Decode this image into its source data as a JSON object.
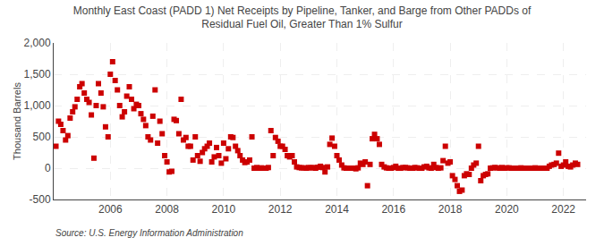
{
  "chart_data": {
    "type": "scatter",
    "title": "Monthly East Coast (PADD 1) Net Receipts by Pipeline, Tanker, and Barge from Other PADDs of\nResidual Fuel Oil, Greater Than 1% Sulfur",
    "ylabel": "Thousand Barrels",
    "annotations": [
      "Source: U.S. Energy Information Administration"
    ],
    "color": "#cc0000",
    "marker": "square",
    "grid": true,
    "xlim": [
      2004.0,
      2022.8
    ],
    "xticks": [
      2006,
      2008,
      2010,
      2012,
      2014,
      2016,
      2018,
      2020,
      2022
    ],
    "ylim": [
      -500,
      2000
    ],
    "yticks": [
      -500,
      0,
      500,
      {
        "value": 1000,
        "label": "1,000"
      },
      {
        "value": 1500,
        "label": "1,500"
      },
      {
        "value": 2000,
        "label": "2,000"
      }
    ],
    "x": [
      2004.08,
      2004.17,
      2004.25,
      2004.33,
      2004.42,
      2004.5,
      2004.58,
      2004.67,
      2004.75,
      2004.83,
      2004.92,
      2005.0,
      2005.08,
      2005.17,
      2005.25,
      2005.33,
      2005.42,
      2005.5,
      2005.58,
      2005.67,
      2005.75,
      2005.83,
      2005.92,
      2006.0,
      2006.08,
      2006.17,
      2006.25,
      2006.33,
      2006.42,
      2006.5,
      2006.58,
      2006.67,
      2006.75,
      2006.83,
      2006.92,
      2007.0,
      2007.08,
      2007.17,
      2007.25,
      2007.33,
      2007.42,
      2007.5,
      2007.58,
      2007.67,
      2007.75,
      2007.83,
      2007.92,
      2008.0,
      2008.08,
      2008.17,
      2008.25,
      2008.33,
      2008.42,
      2008.5,
      2008.58,
      2008.67,
      2008.75,
      2008.83,
      2008.92,
      2009.0,
      2009.08,
      2009.17,
      2009.25,
      2009.33,
      2009.42,
      2009.5,
      2009.58,
      2009.67,
      2009.75,
      2009.83,
      2009.92,
      2010.0,
      2010.08,
      2010.17,
      2010.25,
      2010.33,
      2010.42,
      2010.5,
      2010.58,
      2010.67,
      2010.75,
      2010.83,
      2010.92,
      2011.0,
      2011.08,
      2011.17,
      2011.25,
      2011.33,
      2011.42,
      2011.5,
      2011.58,
      2011.67,
      2011.75,
      2011.83,
      2011.92,
      2012.0,
      2012.08,
      2012.17,
      2012.25,
      2012.33,
      2012.42,
      2012.5,
      2012.58,
      2012.67,
      2012.75,
      2012.83,
      2012.92,
      2013.0,
      2013.08,
      2013.17,
      2013.25,
      2013.33,
      2013.42,
      2013.5,
      2013.58,
      2013.67,
      2013.75,
      2013.83,
      2013.92,
      2014.0,
      2014.08,
      2014.17,
      2014.25,
      2014.33,
      2014.42,
      2014.5,
      2014.58,
      2014.67,
      2014.75,
      2014.83,
      2014.92,
      2015.0,
      2015.08,
      2015.17,
      2015.25,
      2015.33,
      2015.42,
      2015.5,
      2015.58,
      2015.67,
      2015.75,
      2015.83,
      2015.92,
      2016.0,
      2016.08,
      2016.17,
      2016.25,
      2016.33,
      2016.42,
      2016.5,
      2016.58,
      2016.67,
      2016.75,
      2016.83,
      2016.92,
      2017.0,
      2017.08,
      2017.17,
      2017.25,
      2017.33,
      2017.42,
      2017.5,
      2017.58,
      2017.67,
      2017.75,
      2017.83,
      2017.92,
      2018.0,
      2018.08,
      2018.17,
      2018.25,
      2018.33,
      2018.42,
      2018.5,
      2018.58,
      2018.67,
      2018.75,
      2018.83,
      2018.92,
      2019.0,
      2019.08,
      2019.17,
      2019.25,
      2019.33,
      2019.42,
      2019.5,
      2019.58,
      2019.67,
      2019.75,
      2019.83,
      2019.92,
      2020.0,
      2020.08,
      2020.17,
      2020.25,
      2020.33,
      2020.42,
      2020.5,
      2020.58,
      2020.67,
      2020.75,
      2020.83,
      2020.92,
      2021.0,
      2021.08,
      2021.17,
      2021.25,
      2021.33,
      2021.42,
      2021.5,
      2021.58,
      2021.67,
      2021.75,
      2021.83,
      2021.92,
      2022.0,
      2022.08,
      2022.17,
      2022.25,
      2022.33,
      2022.42,
      2022.5
    ],
    "values": [
      350,
      750,
      700,
      600,
      450,
      520,
      800,
      900,
      980,
      1100,
      1300,
      1350,
      1200,
      1100,
      1050,
      850,
      160,
      1000,
      1350,
      1200,
      980,
      660,
      500,
      1500,
      1700,
      1400,
      1250,
      1000,
      820,
      900,
      1150,
      1300,
      1100,
      950,
      1020,
      1000,
      870,
      780,
      680,
      500,
      450,
      830,
      1250,
      400,
      750,
      550,
      200,
      100,
      -60,
      -50,
      780,
      760,
      550,
      1100,
      450,
      490,
      350,
      350,
      130,
      500,
      200,
      110,
      250,
      310,
      350,
      400,
      100,
      180,
      330,
      200,
      80,
      400,
      150,
      310,
      500,
      490,
      350,
      280,
      200,
      130,
      90,
      100,
      130,
      500,
      0,
      10,
      0,
      5,
      0,
      0,
      10,
      600,
      200,
      490,
      430,
      350,
      350,
      300,
      200,
      180,
      200,
      100,
      20,
      10,
      5,
      5,
      0,
      10,
      5,
      10,
      0,
      15,
      30,
      10,
      -60,
      20,
      380,
      480,
      350,
      200,
      130,
      50,
      5,
      0,
      0,
      0,
      0,
      -10,
      5,
      80,
      60,
      100,
      -280,
      60,
      470,
      540,
      470,
      380,
      60,
      20,
      5,
      0,
      0,
      10,
      30,
      0,
      0,
      10,
      10,
      5,
      0,
      0,
      10,
      5,
      0,
      0,
      20,
      30,
      5,
      0,
      60,
      10,
      0,
      5,
      120,
      350,
      80,
      100,
      -120,
      -180,
      -280,
      -370,
      -350,
      -120,
      -90,
      -100,
      0,
      50,
      80,
      350,
      -200,
      -120,
      -100,
      -90,
      0,
      5,
      10,
      5,
      0,
      10,
      0,
      5,
      5,
      0,
      0,
      0,
      0,
      5,
      0,
      0,
      0,
      0,
      0,
      5,
      0,
      0,
      0,
      0,
      0,
      30,
      50,
      60,
      80,
      240,
      30,
      50,
      100,
      30,
      20,
      50,
      80,
      60
    ]
  }
}
